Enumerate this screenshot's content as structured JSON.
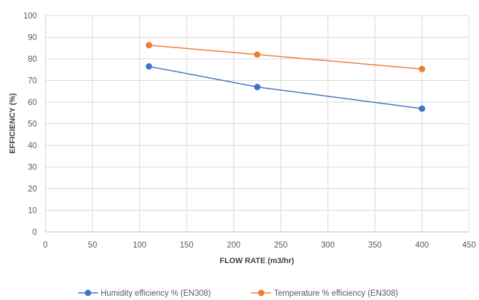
{
  "chart_data": {
    "type": "line",
    "xlabel": "FLOW RATE (m3/hr)",
    "ylabel": "EFFICIENCY (%)",
    "xlim": [
      0,
      450
    ],
    "ylim": [
      0,
      100
    ],
    "xticks": [
      0,
      50,
      100,
      150,
      200,
      250,
      300,
      350,
      400,
      450
    ],
    "yticks": [
      0,
      10,
      20,
      30,
      40,
      50,
      60,
      70,
      80,
      90,
      100
    ],
    "grid": true,
    "legend_position": "bottom",
    "series": [
      {
        "name": "Humidity efficiency % (EN308)",
        "color": "#4472C4",
        "x": [
          110,
          225,
          400
        ],
        "y": [
          76.5,
          67,
          57
        ]
      },
      {
        "name": "Temperature % efficiency (EN308)",
        "color": "#ED7D31",
        "x": [
          110,
          225,
          400
        ],
        "y": [
          86.3,
          82,
          75.3
        ]
      }
    ]
  }
}
